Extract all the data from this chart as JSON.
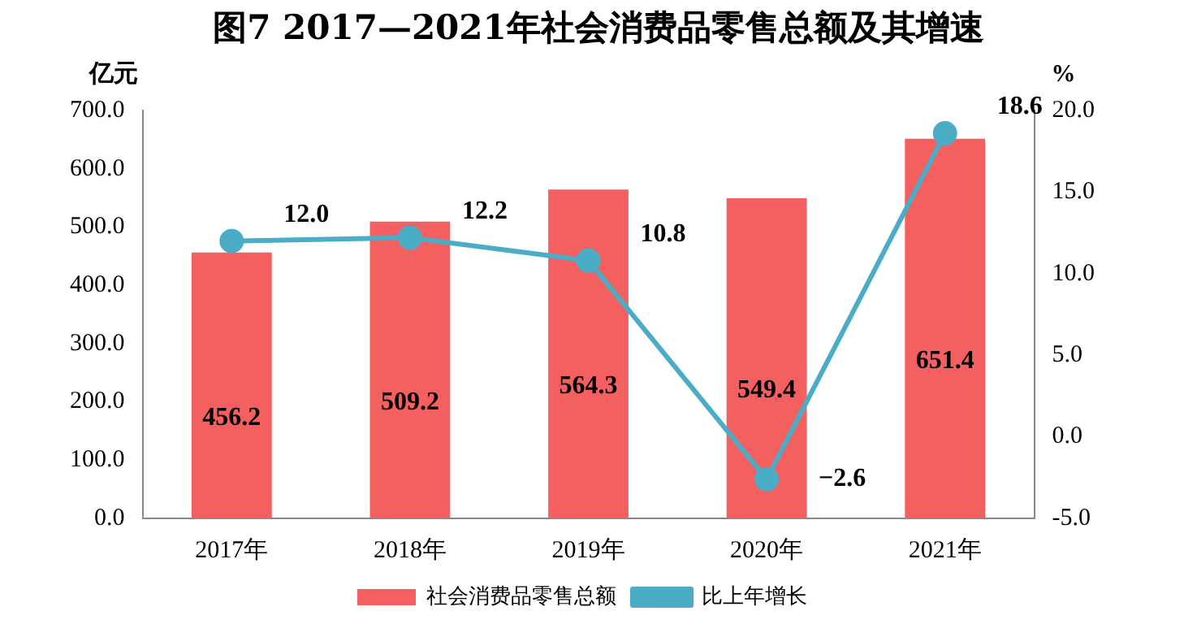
{
  "chart_data": {
    "type": "bar",
    "title": "图7  2017—2021年社会消费品零售总额及其增速",
    "ylabel": "亿元",
    "y2label": "%",
    "categories": [
      "2017年",
      "2018年",
      "2019年",
      "2020年",
      "2021年"
    ],
    "series": [
      {
        "name": "社会消费品零售总额",
        "color": "#f4605f",
        "values": [
          456.2,
          509.2,
          564.3,
          549.4,
          651.4
        ],
        "value_labels": [
          "456.2",
          "509.2",
          "564.3",
          "549.4",
          "651.4"
        ]
      },
      {
        "name": "比上年增长",
        "type": "line",
        "axis": "y2",
        "color": "#4bacc6",
        "values": [
          12.0,
          12.2,
          10.8,
          -2.6,
          18.6
        ],
        "value_labels": [
          "12.0",
          "12.2",
          "10.8",
          "−2.6",
          "18.6"
        ]
      }
    ],
    "ylim": [
      0,
      700
    ],
    "yticks": [
      {
        "value": 0,
        "label": "0.0"
      },
      {
        "value": 100,
        "label": "100.0"
      },
      {
        "value": 200,
        "label": "200.0"
      },
      {
        "value": 300,
        "label": "300.0"
      },
      {
        "value": 400,
        "label": "400.0"
      },
      {
        "value": 500,
        "label": "500.0"
      },
      {
        "value": 600,
        "label": "600.0"
      },
      {
        "value": 700,
        "label": "700.0"
      }
    ],
    "y2lim": [
      -5,
      20
    ],
    "y2ticks": [
      {
        "value": -5,
        "label": "-5.0"
      },
      {
        "value": 0,
        "label": "0.0"
      },
      {
        "value": 5,
        "label": "5.0"
      },
      {
        "value": 10,
        "label": "10.0"
      },
      {
        "value": 15,
        "label": "15.0"
      },
      {
        "value": 20,
        "label": "20.0"
      }
    ],
    "grid": false,
    "legend": "bottom",
    "marker": "circle",
    "line_style": "solid"
  }
}
